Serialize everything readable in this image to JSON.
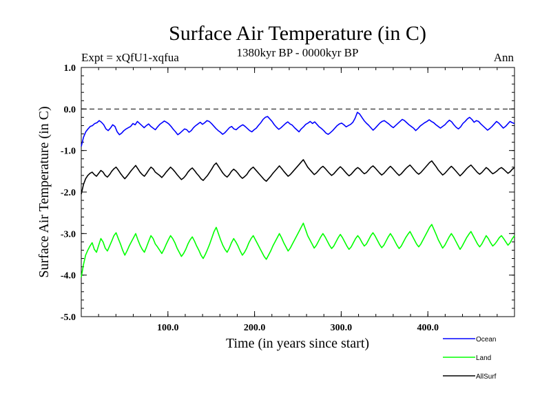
{
  "chart_data": {
    "type": "line",
    "title": "Surface Air Temperature (in C)",
    "subtitle": "1380kyr BP - 0000kyr BP",
    "expt_label": "Expt = xQfU1-xqfua",
    "season_label": "Ann",
    "xlabel": "Time (in years since start)",
    "ylabel": "Surface Air Temperature (in C)",
    "xlim": [
      0,
      500
    ],
    "ylim": [
      -5.0,
      1.0
    ],
    "xticks": [
      100,
      200,
      300,
      400
    ],
    "xtick_labels": [
      "100.0",
      "200.0",
      "300.0",
      "400.0"
    ],
    "yticks": [
      1.0,
      0.0,
      -1.0,
      -2.0,
      -3.0,
      -4.0,
      -5.0
    ],
    "ytick_labels": [
      "1.0",
      "0.0",
      "-1.0",
      "-2.0",
      "-3.0",
      "-4.0",
      "-5.0"
    ],
    "reference_line": 0.0,
    "series": [
      {
        "name": "Ocean",
        "color": "#0000ff",
        "values": [
          -0.9,
          -0.68,
          -0.55,
          -0.48,
          -0.42,
          -0.4,
          -0.35,
          -0.33,
          -0.28,
          -0.32,
          -0.38,
          -0.48,
          -0.52,
          -0.46,
          -0.38,
          -0.42,
          -0.55,
          -0.62,
          -0.58,
          -0.52,
          -0.48,
          -0.45,
          -0.42,
          -0.35,
          -0.38,
          -0.3,
          -0.35,
          -0.4,
          -0.45,
          -0.4,
          -0.36,
          -0.42,
          -0.46,
          -0.5,
          -0.43,
          -0.37,
          -0.33,
          -0.29,
          -0.32,
          -0.36,
          -0.42,
          -0.49,
          -0.55,
          -0.62,
          -0.58,
          -0.53,
          -0.48,
          -0.5,
          -0.56,
          -0.52,
          -0.45,
          -0.4,
          -0.36,
          -0.32,
          -0.37,
          -0.33,
          -0.28,
          -0.3,
          -0.35,
          -0.41,
          -0.47,
          -0.52,
          -0.56,
          -0.61,
          -0.57,
          -0.51,
          -0.45,
          -0.42,
          -0.48,
          -0.5,
          -0.45,
          -0.41,
          -0.38,
          -0.42,
          -0.47,
          -0.52,
          -0.55,
          -0.5,
          -0.46,
          -0.39,
          -0.33,
          -0.25,
          -0.2,
          -0.18,
          -0.24,
          -0.3,
          -0.38,
          -0.44,
          -0.49,
          -0.45,
          -0.4,
          -0.35,
          -0.31,
          -0.36,
          -0.39,
          -0.45,
          -0.5,
          -0.55,
          -0.48,
          -0.43,
          -0.37,
          -0.34,
          -0.3,
          -0.35,
          -0.31,
          -0.37,
          -0.43,
          -0.47,
          -0.52,
          -0.58,
          -0.61,
          -0.57,
          -0.52,
          -0.46,
          -0.4,
          -0.36,
          -0.34,
          -0.38,
          -0.43,
          -0.4,
          -0.37,
          -0.32,
          -0.22,
          -0.08,
          -0.12,
          -0.2,
          -0.28,
          -0.34,
          -0.39,
          -0.45,
          -0.51,
          -0.46,
          -0.4,
          -0.34,
          -0.3,
          -0.28,
          -0.32,
          -0.36,
          -0.41,
          -0.45,
          -0.4,
          -0.35,
          -0.3,
          -0.25,
          -0.28,
          -0.33,
          -0.38,
          -0.42,
          -0.46,
          -0.52,
          -0.47,
          -0.41,
          -0.37,
          -0.33,
          -0.3,
          -0.26,
          -0.3,
          -0.33,
          -0.38,
          -0.42,
          -0.46,
          -0.42,
          -0.38,
          -0.32,
          -0.27,
          -0.31,
          -0.38,
          -0.44,
          -0.48,
          -0.43,
          -0.35,
          -0.3,
          -0.24,
          -0.2,
          -0.25,
          -0.32,
          -0.28,
          -0.3,
          -0.36,
          -0.41,
          -0.46,
          -0.51,
          -0.47,
          -0.42,
          -0.36,
          -0.3,
          -0.34,
          -0.4,
          -0.46,
          -0.42,
          -0.36,
          -0.3,
          -0.33,
          -0.35
        ]
      },
      {
        "name": "Land",
        "color": "#00ff00",
        "values": [
          -4.05,
          -3.75,
          -3.52,
          -3.4,
          -3.3,
          -3.22,
          -3.38,
          -3.45,
          -3.28,
          -3.12,
          -3.2,
          -3.35,
          -3.42,
          -3.3,
          -3.18,
          -3.05,
          -2.98,
          -3.12,
          -3.25,
          -3.4,
          -3.52,
          -3.42,
          -3.3,
          -3.2,
          -3.1,
          -3.0,
          -3.15,
          -3.28,
          -3.38,
          -3.45,
          -3.32,
          -3.18,
          -3.05,
          -3.12,
          -3.25,
          -3.32,
          -3.4,
          -3.48,
          -3.38,
          -3.26,
          -3.15,
          -3.05,
          -3.12,
          -3.22,
          -3.35,
          -3.45,
          -3.55,
          -3.48,
          -3.38,
          -3.25,
          -3.15,
          -3.08,
          -3.18,
          -3.3,
          -3.4,
          -3.52,
          -3.6,
          -3.5,
          -3.38,
          -3.25,
          -3.1,
          -2.95,
          -2.85,
          -3.0,
          -3.15,
          -3.28,
          -3.38,
          -3.45,
          -3.35,
          -3.22,
          -3.12,
          -3.2,
          -3.3,
          -3.42,
          -3.52,
          -3.45,
          -3.35,
          -3.22,
          -3.12,
          -3.05,
          -3.15,
          -3.25,
          -3.35,
          -3.45,
          -3.55,
          -3.62,
          -3.52,
          -3.42,
          -3.3,
          -3.2,
          -3.1,
          -3.0,
          -3.1,
          -3.22,
          -3.32,
          -3.42,
          -3.35,
          -3.25,
          -3.15,
          -3.05,
          -2.95,
          -2.85,
          -2.75,
          -2.9,
          -3.05,
          -3.15,
          -3.25,
          -3.35,
          -3.28,
          -3.18,
          -3.08,
          -3.0,
          -3.08,
          -3.18,
          -3.28,
          -3.36,
          -3.3,
          -3.2,
          -3.1,
          -3.02,
          -3.1,
          -3.2,
          -3.3,
          -3.38,
          -3.32,
          -3.22,
          -3.12,
          -3.05,
          -3.12,
          -3.22,
          -3.3,
          -3.25,
          -3.15,
          -3.05,
          -2.98,
          -3.06,
          -3.16,
          -3.26,
          -3.34,
          -3.28,
          -3.18,
          -3.08,
          -3.0,
          -3.08,
          -3.18,
          -3.28,
          -3.36,
          -3.3,
          -3.2,
          -3.1,
          -3.02,
          -2.95,
          -3.05,
          -3.15,
          -3.25,
          -3.32,
          -3.25,
          -3.15,
          -3.05,
          -2.95,
          -2.85,
          -2.78,
          -2.9,
          -3.02,
          -3.15,
          -3.25,
          -3.35,
          -3.28,
          -3.18,
          -3.08,
          -3.0,
          -3.08,
          -3.18,
          -3.28,
          -3.38,
          -3.3,
          -3.2,
          -3.1,
          -3.02,
          -2.95,
          -3.05,
          -3.15,
          -3.25,
          -3.32,
          -3.25,
          -3.15,
          -3.05,
          -3.12,
          -3.22,
          -3.3,
          -3.25,
          -3.18,
          -3.1,
          -3.05,
          -3.12,
          -3.2,
          -3.28,
          -3.22,
          -3.12,
          -3.05
        ]
      },
      {
        "name": "AllSurf",
        "color": "#000000",
        "values": [
          -2.05,
          -1.82,
          -1.68,
          -1.6,
          -1.55,
          -1.52,
          -1.58,
          -1.62,
          -1.55,
          -1.48,
          -1.52,
          -1.6,
          -1.64,
          -1.58,
          -1.5,
          -1.44,
          -1.4,
          -1.47,
          -1.55,
          -1.62,
          -1.68,
          -1.62,
          -1.55,
          -1.48,
          -1.42,
          -1.36,
          -1.44,
          -1.52,
          -1.58,
          -1.62,
          -1.55,
          -1.47,
          -1.4,
          -1.44,
          -1.52,
          -1.56,
          -1.6,
          -1.65,
          -1.59,
          -1.52,
          -1.46,
          -1.4,
          -1.45,
          -1.51,
          -1.58,
          -1.64,
          -1.7,
          -1.66,
          -1.6,
          -1.52,
          -1.46,
          -1.42,
          -1.48,
          -1.55,
          -1.61,
          -1.68,
          -1.72,
          -1.66,
          -1.6,
          -1.52,
          -1.44,
          -1.35,
          -1.3,
          -1.38,
          -1.46,
          -1.54,
          -1.6,
          -1.64,
          -1.58,
          -1.5,
          -1.45,
          -1.49,
          -1.55,
          -1.62,
          -1.67,
          -1.63,
          -1.58,
          -1.5,
          -1.44,
          -1.4,
          -1.46,
          -1.52,
          -1.58,
          -1.64,
          -1.7,
          -1.74,
          -1.68,
          -1.62,
          -1.55,
          -1.49,
          -1.43,
          -1.37,
          -1.43,
          -1.5,
          -1.56,
          -1.62,
          -1.58,
          -1.52,
          -1.46,
          -1.4,
          -1.34,
          -1.28,
          -1.22,
          -1.31,
          -1.4,
          -1.46,
          -1.52,
          -1.58,
          -1.54,
          -1.48,
          -1.42,
          -1.38,
          -1.43,
          -1.49,
          -1.55,
          -1.6,
          -1.56,
          -1.5,
          -1.44,
          -1.39,
          -1.44,
          -1.5,
          -1.56,
          -1.61,
          -1.57,
          -1.51,
          -1.45,
          -1.41,
          -1.45,
          -1.51,
          -1.56,
          -1.53,
          -1.47,
          -1.41,
          -1.37,
          -1.42,
          -1.48,
          -1.54,
          -1.59,
          -1.55,
          -1.49,
          -1.43,
          -1.38,
          -1.43,
          -1.49,
          -1.55,
          -1.6,
          -1.56,
          -1.5,
          -1.44,
          -1.39,
          -1.35,
          -1.41,
          -1.47,
          -1.53,
          -1.57,
          -1.53,
          -1.47,
          -1.41,
          -1.35,
          -1.29,
          -1.25,
          -1.32,
          -1.39,
          -1.47,
          -1.53,
          -1.59,
          -1.55,
          -1.49,
          -1.43,
          -1.38,
          -1.43,
          -1.49,
          -1.55,
          -1.61,
          -1.56,
          -1.5,
          -1.44,
          -1.39,
          -1.35,
          -1.41,
          -1.47,
          -1.53,
          -1.57,
          -1.53,
          -1.47,
          -1.41,
          -1.45,
          -1.51,
          -1.56,
          -1.53,
          -1.49,
          -1.44,
          -1.41,
          -1.45,
          -1.5,
          -1.55,
          -1.51,
          -1.45,
          -1.41
        ]
      }
    ],
    "legend": [
      {
        "name": "Ocean",
        "color": "#0000ff"
      },
      {
        "name": "Land",
        "color": "#00ff00"
      },
      {
        "name": "AllSurf",
        "color": "#000000"
      }
    ],
    "legend_position": "bottom-right"
  }
}
